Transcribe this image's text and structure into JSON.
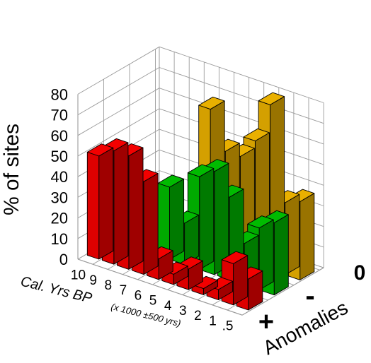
{
  "chart_data": {
    "type": "bar",
    "subtype": "3d-grouped-bar",
    "title": "",
    "ylabel": "% of sites",
    "xlabel_main": "Cal. Yrs BP",
    "xlabel_note": "(x 1000 ±500 yrs)",
    "zlabel": "Anomalies",
    "ylim": [
      0,
      80
    ],
    "yticks": [
      "0",
      "10",
      "20",
      "30",
      "40",
      "50",
      "60",
      "70",
      "80"
    ],
    "categories": [
      "10",
      "9",
      "8",
      "7",
      "6",
      "5",
      "4",
      "3",
      "2",
      "1",
      ".5"
    ],
    "series": [
      {
        "name": "+",
        "color": "#dd0000",
        "values": [
          50,
          55,
          55,
          45,
          10,
          5,
          10,
          3,
          5,
          20,
          15
        ]
      },
      {
        "name": "-",
        "color": "#00aa00",
        "values": [
          0,
          0,
          0,
          35,
          20,
          45,
          50,
          40,
          20,
          30,
          35
        ]
      },
      {
        "name": "0",
        "color": "#d4a000",
        "values": [
          0,
          0,
          0,
          0,
          68,
          50,
          50,
          60,
          80,
          35,
          38
        ]
      }
    ]
  }
}
